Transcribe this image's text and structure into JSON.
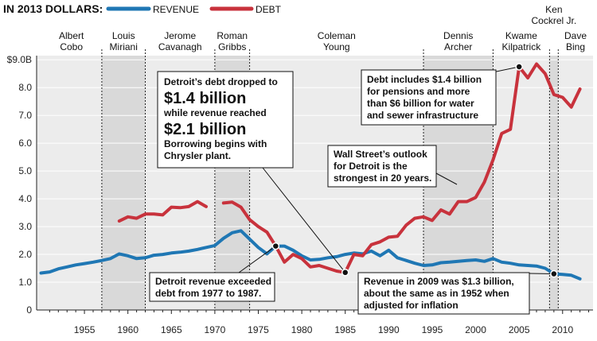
{
  "chart_data": {
    "type": "line",
    "unit_label": "IN 2013 DOLLARS:",
    "x_ticks": [
      1955,
      1960,
      1965,
      1970,
      1975,
      1980,
      1985,
      1990,
      1995,
      2000,
      2005,
      2010
    ],
    "y_ticks": [
      {
        "value": 0,
        "label": "0"
      },
      {
        "value": 1,
        "label": "1.0"
      },
      {
        "value": 2,
        "label": "2.0"
      },
      {
        "value": 3,
        "label": "3.0"
      },
      {
        "value": 4,
        "label": "4.0"
      },
      {
        "value": 5,
        "label": "5.0"
      },
      {
        "value": 6,
        "label": "6.0"
      },
      {
        "value": 7,
        "label": "7.0"
      },
      {
        "value": 8,
        "label": "8.0"
      },
      {
        "value": 9,
        "label": "$9.0B"
      }
    ],
    "xlim": [
      1949.5,
      2013.5
    ],
    "ylim": [
      0,
      9.15
    ],
    "grid": true,
    "legend": "top-left",
    "colors": {
      "revenue": "#1f77b4",
      "debt": "#c8323c",
      "shade": "#d9d9d9",
      "plot_bg": "#ececec"
    },
    "series": [
      {
        "name": "REVENUE",
        "color": "#1f77b4",
        "x": [
          1950,
          1951,
          1952,
          1953,
          1954,
          1955,
          1956,
          1957,
          1958,
          1959,
          1960,
          1961,
          1962,
          1963,
          1964,
          1965,
          1966,
          1967,
          1968,
          1969,
          1970,
          1971,
          1972,
          1973,
          1974,
          1975,
          1976,
          1977,
          1978,
          1979,
          1980,
          1981,
          1982,
          1983,
          1984,
          1985,
          1986,
          1987,
          1988,
          1989,
          1990,
          1991,
          1992,
          1993,
          1994,
          1995,
          1996,
          1997,
          1998,
          1999,
          2000,
          2001,
          2002,
          2003,
          2004,
          2005,
          2006,
          2007,
          2008,
          2009,
          2010,
          2011,
          2012
        ],
        "y": [
          1.33,
          1.37,
          1.48,
          1.55,
          1.62,
          1.67,
          1.72,
          1.78,
          1.85,
          2.02,
          1.95,
          1.85,
          1.88,
          1.97,
          2.0,
          2.05,
          2.08,
          2.12,
          2.18,
          2.25,
          2.32,
          2.58,
          2.78,
          2.85,
          2.55,
          2.25,
          2.02,
          2.3,
          2.3,
          2.15,
          1.95,
          1.8,
          1.82,
          1.88,
          1.92,
          2.0,
          2.05,
          2.02,
          2.12,
          1.95,
          2.15,
          1.88,
          1.78,
          1.68,
          1.6,
          1.62,
          1.7,
          1.72,
          1.75,
          1.78,
          1.8,
          1.75,
          1.85,
          1.72,
          1.68,
          1.62,
          1.6,
          1.58,
          1.5,
          1.3,
          1.28,
          1.25,
          1.12
        ]
      },
      {
        "name": "DEBT",
        "color": "#c8323c",
        "x": [
          1959,
          1960,
          1961,
          1962,
          1963,
          1964,
          1965,
          1966,
          1967,
          1968,
          1969,
          null,
          1971,
          1972,
          1973,
          1974,
          1975,
          1976,
          1977,
          1978,
          1979,
          1980,
          1981,
          1982,
          1983,
          1984,
          1985,
          1986,
          1987,
          1988,
          1989,
          1990,
          1991,
          1992,
          1993,
          1994,
          1995,
          1996,
          1997,
          1998,
          1999,
          2000,
          2001,
          2002,
          2003,
          2004,
          2005,
          2006,
          2007,
          2008,
          2009,
          2010,
          2011,
          2012
        ],
        "y": [
          3.2,
          3.35,
          3.3,
          3.45,
          3.45,
          3.42,
          3.7,
          3.68,
          3.72,
          3.9,
          3.72,
          null,
          3.85,
          3.88,
          3.7,
          3.25,
          3.0,
          2.8,
          2.3,
          1.72,
          2.0,
          1.85,
          1.55,
          1.6,
          1.5,
          1.4,
          1.35,
          2.0,
          1.95,
          2.35,
          2.45,
          2.62,
          2.65,
          3.05,
          3.3,
          3.35,
          3.22,
          3.6,
          3.45,
          3.9,
          3.9,
          4.05,
          4.6,
          5.4,
          6.35,
          6.5,
          8.75,
          8.35,
          8.85,
          8.5,
          7.75,
          7.65,
          7.3,
          7.95
        ]
      }
    ],
    "mayors": [
      {
        "label1": "Albert",
        "label2": "Cobo",
        "label3": "",
        "start": 1950,
        "end": 1957,
        "shaded": false
      },
      {
        "label1": "Louis",
        "label2": "Miriani",
        "label3": "",
        "start": 1957,
        "end": 1962,
        "shaded": true
      },
      {
        "label1": "Jerome",
        "label2": "Cavanagh",
        "label3": "",
        "start": 1962,
        "end": 1970,
        "shaded": false
      },
      {
        "label1": "Roman",
        "label2": "Gribbs",
        "label3": "",
        "start": 1970,
        "end": 1974,
        "shaded": true
      },
      {
        "label1": "Coleman",
        "label2": "Young",
        "label3": "",
        "start": 1974,
        "end": 1994,
        "shaded": false
      },
      {
        "label1": "Dennis",
        "label2": "Archer",
        "label3": "",
        "start": 1994,
        "end": 2002,
        "shaded": true
      },
      {
        "label1": "Kwame",
        "label2": "Kilpatrick",
        "label3": "",
        "start": 2002,
        "end": 2008.5,
        "shaded": false
      },
      {
        "label1": "Ken",
        "label2": "Cockrel Jr.",
        "label3": "",
        "start": 2008.5,
        "end": 2009.5,
        "shaded": true
      },
      {
        "label1": "Dave",
        "label2": "Bing",
        "label3": "",
        "start": 2009.5,
        "end": 2013.5,
        "shaded": false
      }
    ],
    "annotations": [
      {
        "lines": [
          "Detroit’s debt dropped to",
          "$1.4 billion",
          "while revenue reached",
          "$2.1 billion",
          "Borrowing begins with",
          "Chrysler plant."
        ],
        "big": [
          1,
          3
        ],
        "point": {
          "x": 1985,
          "y": 1.35
        }
      },
      {
        "lines": [
          "Detroit revenue exceeded",
          "debt from 1977 to 1987."
        ],
        "big": [],
        "point": {
          "x": 1977,
          "y": 2.3
        }
      },
      {
        "lines": [
          "Wall Street’s outlook",
          "for Detroit is the",
          "strongest in 20 years."
        ],
        "big": [],
        "point": null
      },
      {
        "lines": [
          "Debt includes $1.4 billion",
          "for pensions and more",
          "than $6 billion for water",
          "and sewer infrastructure"
        ],
        "big": [],
        "point": {
          "x": 2005,
          "y": 8.75
        }
      },
      {
        "lines": [
          "Revenue in 2009 was $1.3 billion,",
          "about the same as in 1952 when",
          "adjusted for inflation"
        ],
        "big": [],
        "point": {
          "x": 2009,
          "y": 1.3
        }
      }
    ]
  }
}
